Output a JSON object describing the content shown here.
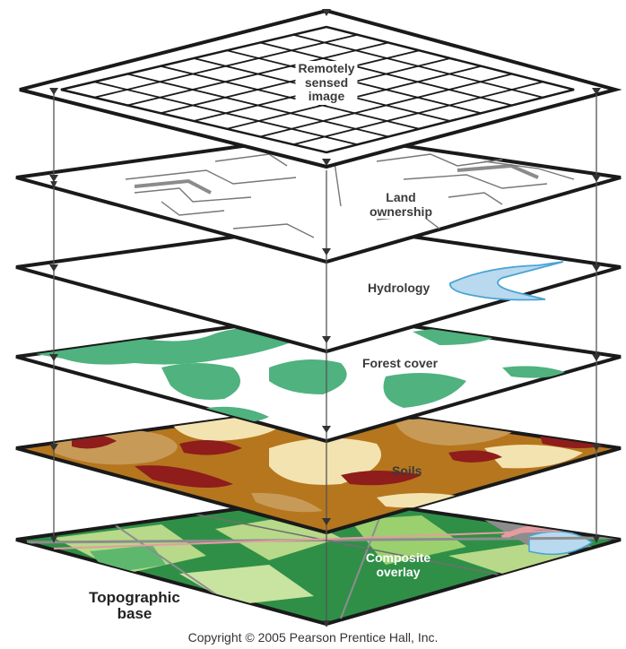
{
  "layers": [
    {
      "id": "remote",
      "label": "Remotely\nsensed\nimage"
    },
    {
      "id": "land",
      "label": "Land\nownership"
    },
    {
      "id": "hydro",
      "label": "Hydrology"
    },
    {
      "id": "forest",
      "label": "Forest cover"
    },
    {
      "id": "soils",
      "label": "Soils"
    },
    {
      "id": "composite",
      "label": "Composite\noverlay"
    }
  ],
  "base_label": "Topographic\nbase",
  "copyright": "Copyright © 2005 Pearson Prentice Hall, Inc.",
  "colors": {
    "outline": "#1a1a1a",
    "connector": "#555555",
    "forest_green": "#4fb27f",
    "water_blue": "#b9d9ee",
    "water_line": "#4aa3d6",
    "soil_brown": "#b5761e",
    "soil_red": "#8e1d1b",
    "soil_cream": "#f3e3b0",
    "soil_tan": "#c89a57",
    "map_green": "#2f8f47",
    "map_lightgreen": "#b7d989",
    "map_grey": "#8d8d8d",
    "map_pink": "#e59ca0"
  }
}
